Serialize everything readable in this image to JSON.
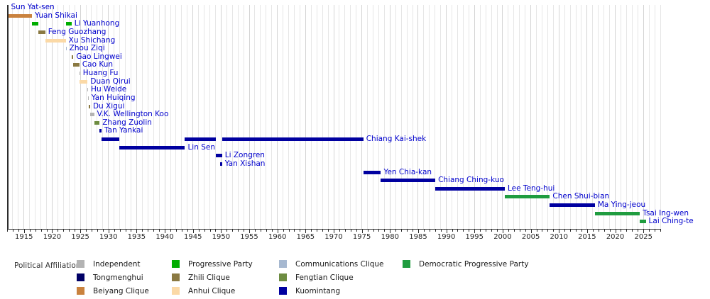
{
  "chart_data": {
    "type": "timeline",
    "title": "",
    "x_axis": {
      "min": 1912,
      "max": 2028,
      "minor_tick_step": 1,
      "major_tick_step": 5,
      "label_start": 1915,
      "label_step": 5,
      "tick_labels": [
        "1915",
        "1920",
        "1925",
        "1930",
        "1935",
        "1940",
        "1945",
        "1950",
        "1955",
        "1960",
        "1965",
        "1970",
        "1975",
        "1980",
        "1985",
        "1990",
        "1995",
        "2000",
        "2005",
        "2010",
        "2015",
        "2020",
        "2025"
      ]
    },
    "rows": [
      {
        "name": "Sun Yat-sen",
        "affiliation": "Tongmenghui",
        "terms": [
          [
            1912.0,
            1912.19
          ]
        ]
      },
      {
        "name": "Yuan Shikai",
        "affiliation": "Beiyang Clique",
        "terms": [
          [
            1912.19,
            1916.43
          ]
        ]
      },
      {
        "name": "Li Yuanhong",
        "affiliation": "Progressive Party",
        "terms": [
          [
            1916.43,
            1917.54
          ],
          [
            1922.44,
            1923.45
          ]
        ]
      },
      {
        "name": "Feng Guozhang",
        "affiliation": "Zhili Clique",
        "terms": [
          [
            1917.54,
            1918.77
          ]
        ]
      },
      {
        "name": "Xu Shichang",
        "affiliation": "Anhui Clique",
        "terms": [
          [
            1918.77,
            1922.42
          ]
        ]
      },
      {
        "name": "Zhou Ziqi",
        "affiliation": "Communications Clique",
        "terms": [
          [
            1922.42,
            1922.55
          ]
        ]
      },
      {
        "name": "Gao Lingwei",
        "affiliation": "Zhili Clique",
        "terms": [
          [
            1923.45,
            1923.78
          ]
        ]
      },
      {
        "name": "Cao Kun",
        "affiliation": "Zhili Clique",
        "terms": [
          [
            1923.78,
            1924.84
          ]
        ]
      },
      {
        "name": "Huang Fu",
        "affiliation": "Independent",
        "terms": [
          [
            1924.84,
            1924.95
          ]
        ]
      },
      {
        "name": "Duan Qirui",
        "affiliation": "Anhui Clique",
        "terms": [
          [
            1924.9,
            1926.3
          ]
        ]
      },
      {
        "name": "Hu Weide",
        "affiliation": "Independent",
        "terms": [
          [
            1926.3,
            1926.38
          ]
        ]
      },
      {
        "name": "Yan Huiqing",
        "affiliation": "Independent",
        "terms": [
          [
            1926.38,
            1926.47
          ]
        ]
      },
      {
        "name": "Du Xigui",
        "affiliation": "Zhili Clique",
        "terms": [
          [
            1926.47,
            1926.75
          ]
        ]
      },
      {
        "name": "V.K. Wellington Koo",
        "affiliation": "Independent",
        "terms": [
          [
            1926.75,
            1927.46
          ]
        ]
      },
      {
        "name": "Zhang Zuolin",
        "affiliation": "Fengtian Clique",
        "terms": [
          [
            1927.46,
            1928.42
          ]
        ]
      },
      {
        "name": "Tan Yankai",
        "affiliation": "Kuomintang",
        "terms": [
          [
            1928.42,
            1928.77
          ]
        ]
      },
      {
        "name": "Chiang Kai-shek",
        "affiliation": "Kuomintang",
        "terms": [
          [
            1928.77,
            1931.96
          ],
          [
            1943.58,
            1949.05
          ],
          [
            1950.17,
            1975.26
          ]
        ]
      },
      {
        "name": "Lin Sen",
        "affiliation": "Kuomintang",
        "terms": [
          [
            1931.96,
            1943.58
          ]
        ]
      },
      {
        "name": "Li Zongren",
        "affiliation": "Kuomintang",
        "terms": [
          [
            1949.05,
            1950.17
          ]
        ]
      },
      {
        "name": "Yan Xishan",
        "affiliation": "Kuomintang",
        "terms": [
          [
            1949.87,
            1950.17
          ]
        ]
      },
      {
        "name": "Yen Chia-kan",
        "affiliation": "Kuomintang",
        "terms": [
          [
            1975.26,
            1978.38
          ]
        ]
      },
      {
        "name": "Chiang Ching-kuo",
        "affiliation": "Kuomintang",
        "terms": [
          [
            1978.38,
            1988.04
          ]
        ]
      },
      {
        "name": "Lee Teng-hui",
        "affiliation": "Kuomintang",
        "terms": [
          [
            1988.04,
            2000.38
          ]
        ]
      },
      {
        "name": "Chen Shui-bian",
        "affiliation": "Democratic Progressive Party",
        "terms": [
          [
            2000.38,
            2008.38
          ]
        ]
      },
      {
        "name": "Ma Ying-jeou",
        "affiliation": "Kuomintang",
        "terms": [
          [
            2008.38,
            2016.38
          ]
        ]
      },
      {
        "name": "Tsai Ing-wen",
        "affiliation": "Democratic Progressive Party",
        "terms": [
          [
            2016.38,
            2024.38
          ]
        ]
      },
      {
        "name": "Lai Ching-te",
        "affiliation": "Democratic Progressive Party",
        "terms": [
          [
            2024.38,
            2025.42
          ]
        ]
      }
    ],
    "legend": {
      "title": "Political Affiliation:",
      "entries": [
        {
          "label": "Independent",
          "color": "#b3b3b3"
        },
        {
          "label": "Tongmenghui",
          "color": "#000066"
        },
        {
          "label": "Beiyang Clique",
          "color": "#c9823e"
        },
        {
          "label": "Progressive Party",
          "color": "#00ad00"
        },
        {
          "label": "Zhili Clique",
          "color": "#8a7942"
        },
        {
          "label": "Anhui Clique",
          "color": "#fbd9a6"
        },
        {
          "label": "Communications Clique",
          "color": "#a6b8d0"
        },
        {
          "label": "Fengtian Clique",
          "color": "#6d8c41"
        },
        {
          "label": "Kuomintang",
          "color": "#0000a0"
        },
        {
          "label": "Democratic Progressive Party",
          "color": "#1f9c3f"
        }
      ],
      "columns": [
        [
          0,
          1,
          2
        ],
        [
          3,
          4,
          5
        ],
        [
          6,
          7,
          8
        ],
        [
          9
        ]
      ]
    },
    "colors": {
      "row_label_text": "#0000cd",
      "axis_text": "#262626",
      "gridline_minor": "#e6e6e6",
      "gridline_major": "#d4d4d4",
      "spine": "#2b2b2b"
    }
  }
}
